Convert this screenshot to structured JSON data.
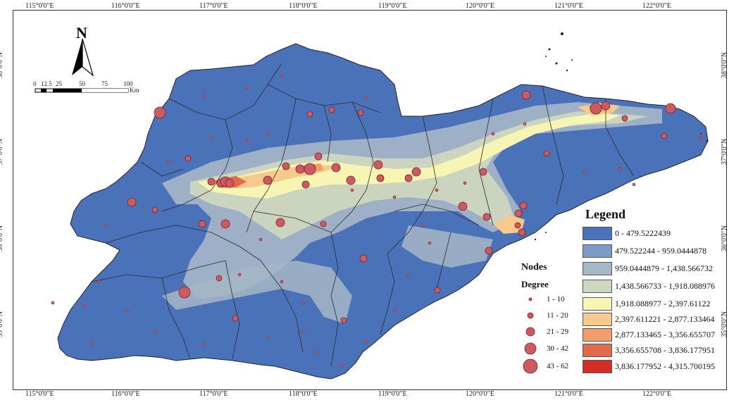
{
  "longitude_labels": [
    "115°0'0\"E",
    "116°0'0\"E",
    "117°0'0\"E",
    "118°0'0\"E",
    "119°0'0\"E",
    "120°0'0\"E",
    "121°0'0\"E",
    "122°0'0\"E"
  ],
  "latitude_labels": [
    "38°0'0\"N",
    "37°0'0\"N",
    "36°0'0\"N",
    "35°0'0\"N"
  ],
  "north_arrow": "N",
  "scale_bar": {
    "ticks": [
      "0",
      "12.5",
      "25",
      "50",
      "75",
      "100"
    ],
    "unit": "Km"
  },
  "legend": {
    "title": "Legend",
    "classes": [
      {
        "label": "0 - 479.5222439",
        "color": "#4a72b8"
      },
      {
        "label": "479.522244 - 959.0444878",
        "color": "#7d9bc9"
      },
      {
        "label": "959.0444879 - 1,438.566732",
        "color": "#a6b7c6"
      },
      {
        "label": "1,438.566733 - 1,918.088976",
        "color": "#cdd6be"
      },
      {
        "label": "1,918.088977 - 2,397.61122",
        "color": "#f7f5b4"
      },
      {
        "label": "2,397.611221 - 2,877.133464",
        "color": "#f6c98c"
      },
      {
        "label": "2,877.133465 - 3,356.655707",
        "color": "#f19e6c"
      },
      {
        "label": "3,356.655708 - 3,836.177951",
        "color": "#e4684b"
      },
      {
        "label": "3,836.177952 - 4,315.700195",
        "color": "#d42e24"
      }
    ]
  },
  "nodes": {
    "title": "Nodes",
    "subtitle": "Degree",
    "classes": [
      "1 - 10",
      "11 - 20",
      "21 - 29",
      "30 - 42",
      "43 - 62"
    ],
    "color": "#cc5a60"
  }
}
